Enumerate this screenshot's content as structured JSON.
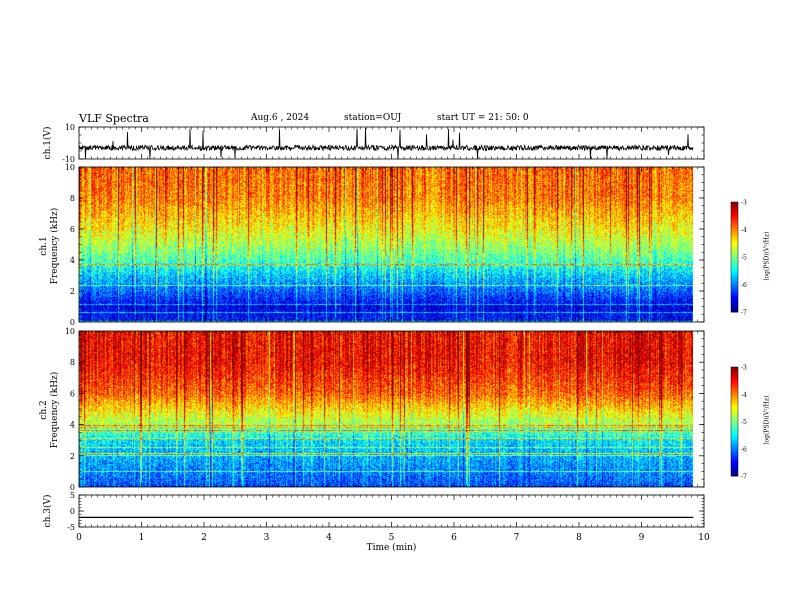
{
  "header": {
    "title": "VLF Spectra",
    "date": "Aug.6 , 2024",
    "station": "station=OUJ",
    "start": "start UT = 21: 50: 0"
  },
  "chart_data": [
    {
      "type": "line",
      "panel": "ch1-waveform",
      "ylabel": "ch.1(V)",
      "ylim": [
        -10,
        10
      ],
      "yticks": [
        "10",
        "-10"
      ],
      "xlim": [
        0,
        9.83
      ],
      "baseline": -3,
      "color": "#000000"
    },
    {
      "type": "heatmap",
      "panel": "ch1-spectrogram",
      "ylabel": "ch.1\nFrequency (kHz)",
      "yticks": [
        "0",
        "2",
        "4",
        "6",
        "8",
        "10"
      ],
      "ylim": [
        0,
        10
      ],
      "xlim": [
        0,
        9.83
      ],
      "colorbar": {
        "label": "log(PSD)(V²/Hz)",
        "ticks": [
          "-3",
          "-4",
          "-5",
          "-6",
          "-7"
        ],
        "range": [
          -7,
          -3
        ]
      },
      "intensity_profile": {
        "freq_kHz": [
          0,
          1,
          2,
          3,
          4,
          6,
          8,
          10
        ],
        "log_psd": [
          -6.4,
          -6.6,
          -6.1,
          -5.7,
          -5.2,
          -4.5,
          -4.0,
          -3.9
        ]
      }
    },
    {
      "type": "heatmap",
      "panel": "ch2-spectrogram",
      "ylabel": "ch.2\nFrequency (kHz)",
      "yticks": [
        "0",
        "2",
        "4",
        "6",
        "8",
        "10"
      ],
      "ylim": [
        0,
        10
      ],
      "xlim": [
        0,
        9.83
      ],
      "colorbar": {
        "label": "log(PSD)(V²/Hz)",
        "ticks": [
          "-3",
          "-4",
          "-5",
          "-6",
          "-7"
        ],
        "range": [
          -7,
          -3
        ]
      },
      "intensity_profile": {
        "freq_kHz": [
          0,
          1,
          2,
          3,
          4,
          6,
          8,
          10
        ],
        "log_psd": [
          -6.2,
          -6.0,
          -5.8,
          -5.6,
          -4.9,
          -3.9,
          -3.5,
          -3.5
        ]
      }
    },
    {
      "type": "line",
      "panel": "ch3-waveform",
      "ylabel": "ch.3(V)",
      "ylim": [
        -5,
        5
      ],
      "yticks": [
        "5",
        "0",
        "-5"
      ],
      "xlim": [
        0,
        9.83
      ],
      "y": [
        -2,
        -2
      ],
      "x": [
        0,
        9.83
      ],
      "color": "#000000"
    }
  ],
  "xaxis": {
    "label": "Time (min)",
    "range": [
      0,
      10
    ],
    "ticks": [
      "0",
      "1",
      "2",
      "3",
      "4",
      "5",
      "6",
      "7",
      "8",
      "9",
      "10"
    ]
  }
}
